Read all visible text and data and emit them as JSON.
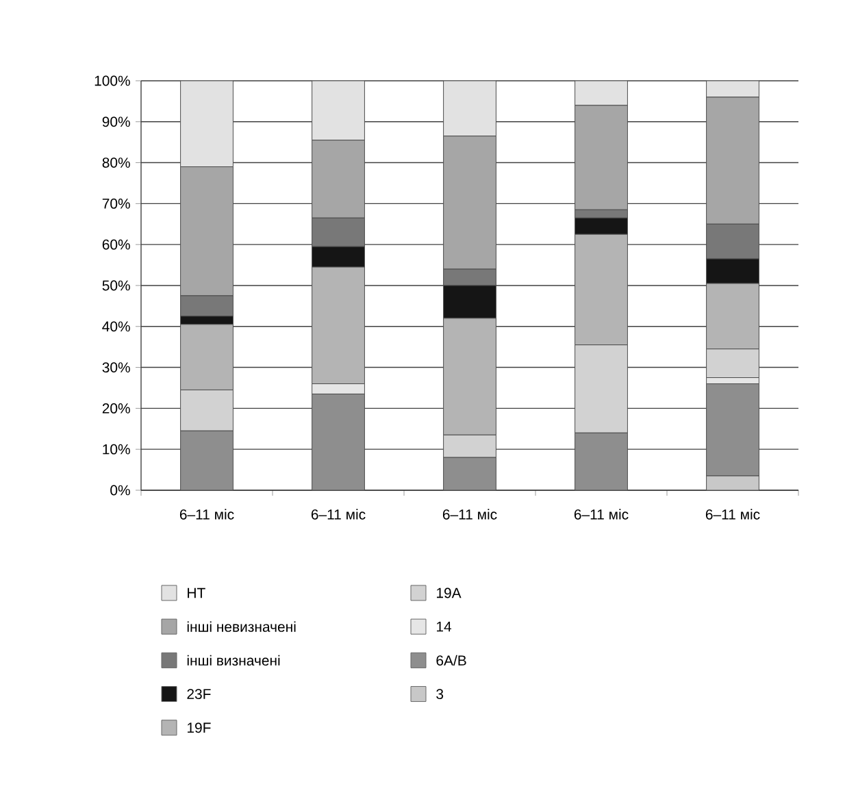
{
  "chart_data": {
    "type": "bar",
    "stacked": true,
    "categories": [
      "6–11 міс",
      "6–11 міс",
      "6–11 міс",
      "6–11 міс",
      "6–11 міс"
    ],
    "series": [
      {
        "name": "3",
        "color": "#c8c8c8",
        "values": [
          0,
          0,
          0,
          0,
          3.5
        ]
      },
      {
        "name": "6A/B",
        "color": "#8e8e8e",
        "values": [
          14.5,
          23.5,
          8,
          14,
          22.5
        ]
      },
      {
        "name": "14",
        "color": "#e6e6e6",
        "values": [
          0,
          2.5,
          0,
          0,
          1.5
        ]
      },
      {
        "name": "19A",
        "color": "#d2d2d2",
        "values": [
          10,
          0,
          5.5,
          21.5,
          7
        ]
      },
      {
        "name": "19F",
        "color": "#b4b4b4",
        "values": [
          16,
          28.5,
          28.5,
          27,
          16
        ]
      },
      {
        "name": "23F",
        "color": "#151515",
        "values": [
          2,
          5,
          8,
          4,
          6
        ]
      },
      {
        "name": "інші визначені",
        "color": "#787878",
        "values": [
          5,
          7,
          4,
          2,
          8.5
        ]
      },
      {
        "name": "інші невизначені",
        "color": "#a6a6a6",
        "values": [
          31.5,
          19,
          32.5,
          25.5,
          31
        ]
      },
      {
        "name": "НТ",
        "color": "#e2e2e2",
        "values": [
          21,
          14.5,
          13.5,
          6,
          4
        ]
      }
    ],
    "ylim": [
      0,
      100
    ],
    "yticks": [
      {
        "value": 0,
        "label": "0%"
      },
      {
        "value": 10,
        "label": "10%"
      },
      {
        "value": 20,
        "label": "20%"
      },
      {
        "value": 30,
        "label": "30%"
      },
      {
        "value": 40,
        "label": "40%"
      },
      {
        "value": 50,
        "label": "50%"
      },
      {
        "value": 60,
        "label": "60%"
      },
      {
        "value": 70,
        "label": "70%"
      },
      {
        "value": 80,
        "label": "80%"
      },
      {
        "value": 90,
        "label": "90%"
      },
      {
        "value": 100,
        "label": "100%"
      }
    ],
    "grid": "y",
    "legend": "bottom"
  }
}
